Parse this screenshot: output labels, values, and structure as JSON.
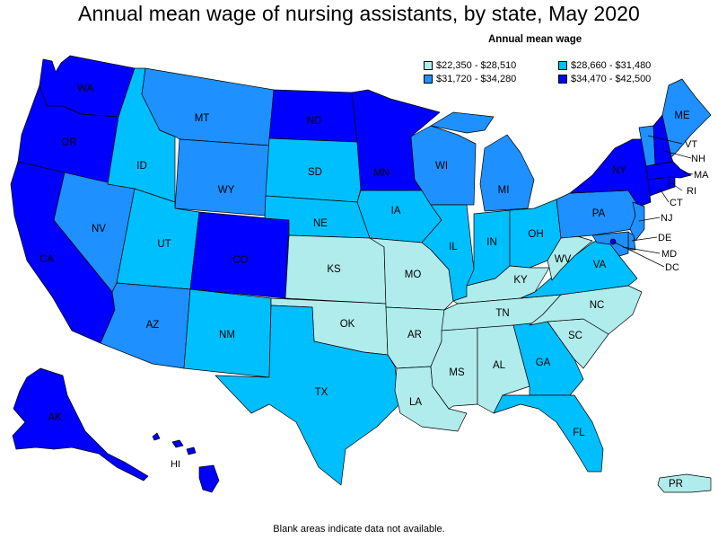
{
  "title": "Annual mean wage of nursing assistants, by state, May 2020",
  "legend": {
    "title": "Annual mean wage",
    "items": [
      {
        "range": "$22,350 - $28,510",
        "color": "#b0ecec"
      },
      {
        "range": "$28,660 - $31,480",
        "color": "#00bfff"
      },
      {
        "range": "$31,720 - $34,280",
        "color": "#1e90ff"
      },
      {
        "range": "$34,470 - $42,500",
        "color": "#0000ff"
      }
    ]
  },
  "footnote": "Blank areas indicate data not available.",
  "states": [
    {
      "abbr": "WA",
      "class": 4
    },
    {
      "abbr": "OR",
      "class": 4
    },
    {
      "abbr": "CA",
      "class": 4
    },
    {
      "abbr": "NV",
      "class": 3
    },
    {
      "abbr": "ID",
      "class": 2
    },
    {
      "abbr": "MT",
      "class": 3
    },
    {
      "abbr": "WY",
      "class": 3
    },
    {
      "abbr": "UT",
      "class": 2
    },
    {
      "abbr": "AZ",
      "class": 3
    },
    {
      "abbr": "CO",
      "class": 4
    },
    {
      "abbr": "NM",
      "class": 2
    },
    {
      "abbr": "ND",
      "class": 4
    },
    {
      "abbr": "SD",
      "class": 2
    },
    {
      "abbr": "NE",
      "class": 2
    },
    {
      "abbr": "KS",
      "class": 1
    },
    {
      "abbr": "OK",
      "class": 1
    },
    {
      "abbr": "TX",
      "class": 2
    },
    {
      "abbr": "MN",
      "class": 4
    },
    {
      "abbr": "IA",
      "class": 2
    },
    {
      "abbr": "MO",
      "class": 1
    },
    {
      "abbr": "AR",
      "class": 1
    },
    {
      "abbr": "LA",
      "class": 1
    },
    {
      "abbr": "WI",
      "class": 3
    },
    {
      "abbr": "IL",
      "class": 2
    },
    {
      "abbr": "MI",
      "class": 3
    },
    {
      "abbr": "IN",
      "class": 2
    },
    {
      "abbr": "OH",
      "class": 2
    },
    {
      "abbr": "KY",
      "class": 1
    },
    {
      "abbr": "TN",
      "class": 1
    },
    {
      "abbr": "MS",
      "class": 1
    },
    {
      "abbr": "AL",
      "class": 1
    },
    {
      "abbr": "GA",
      "class": 2
    },
    {
      "abbr": "FL",
      "class": 2
    },
    {
      "abbr": "SC",
      "class": 1
    },
    {
      "abbr": "NC",
      "class": 1
    },
    {
      "abbr": "VA",
      "class": 2
    },
    {
      "abbr": "WV",
      "class": 1
    },
    {
      "abbr": "PA",
      "class": 3
    },
    {
      "abbr": "NY",
      "class": 4
    },
    {
      "abbr": "ME",
      "class": 3
    },
    {
      "abbr": "VT",
      "class": 3
    },
    {
      "abbr": "NH",
      "class": 4
    },
    {
      "abbr": "MA",
      "class": 4
    },
    {
      "abbr": "RI",
      "class": 4
    },
    {
      "abbr": "CT",
      "class": 4
    },
    {
      "abbr": "NJ",
      "class": 3
    },
    {
      "abbr": "DE",
      "class": 3
    },
    {
      "abbr": "MD",
      "class": 3
    },
    {
      "abbr": "DC",
      "class": 4
    },
    {
      "abbr": "AK",
      "class": 4
    },
    {
      "abbr": "HI",
      "class": 4
    },
    {
      "abbr": "PR",
      "class": 1
    }
  ]
}
